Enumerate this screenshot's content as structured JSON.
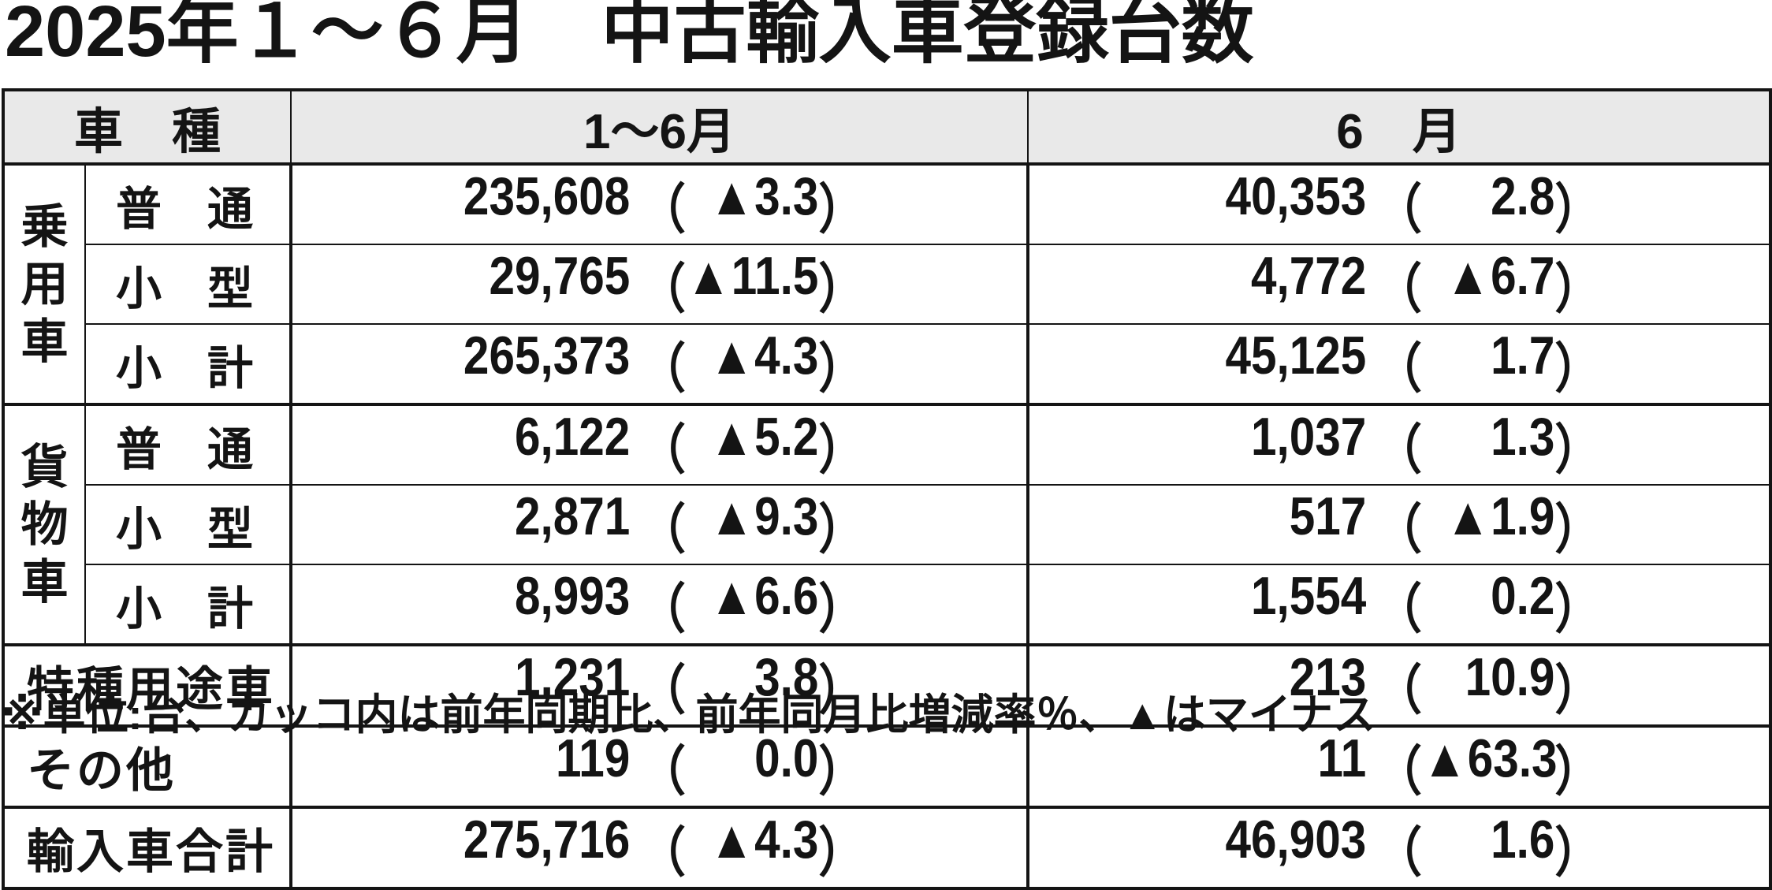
{
  "title": "2025年１～６月　中古輸入車登録台数",
  "footnote": "※単位:台、カッコ内は前年同期比、前年同月比増減率％、▲はマイナス",
  "format": {
    "open": "（",
    "close": "）"
  },
  "table": {
    "headers": {
      "vehicle_type": "車　種",
      "jan_jun": "1～6月",
      "june": "6　月"
    },
    "groups": [
      {
        "label": "乗用車",
        "chars": [
          "乗",
          "用",
          "車"
        ]
      },
      {
        "label": "貨物車",
        "chars": [
          "貨",
          "物",
          "車"
        ]
      }
    ],
    "rows": [
      {
        "group": "乗用車",
        "sub": "普通",
        "sub_chars": [
          "普",
          "通"
        ],
        "h1_value": "235,608",
        "h1_rate": "▲3.3",
        "jun_value": "40,353",
        "jun_rate": "2.8"
      },
      {
        "group": "乗用車",
        "sub": "小型",
        "sub_chars": [
          "小",
          "型"
        ],
        "h1_value": "29,765",
        "h1_rate": "▲11.5",
        "jun_value": "4,772",
        "jun_rate": "▲6.7"
      },
      {
        "group": "乗用車",
        "sub": "小計",
        "sub_chars": [
          "小",
          "計"
        ],
        "h1_value": "265,373",
        "h1_rate": "▲4.3",
        "jun_value": "45,125",
        "jun_rate": "1.7"
      },
      {
        "group": "貨物車",
        "sub": "普通",
        "sub_chars": [
          "普",
          "通"
        ],
        "h1_value": "6,122",
        "h1_rate": "▲5.2",
        "jun_value": "1,037",
        "jun_rate": "1.3"
      },
      {
        "group": "貨物車",
        "sub": "小型",
        "sub_chars": [
          "小",
          "型"
        ],
        "h1_value": "2,871",
        "h1_rate": "▲9.3",
        "jun_value": "517",
        "jun_rate": "▲1.9"
      },
      {
        "group": "貨物車",
        "sub": "小計",
        "sub_chars": [
          "小",
          "計"
        ],
        "h1_value": "8,993",
        "h1_rate": "▲6.6",
        "jun_value": "1,554",
        "jun_rate": "0.2"
      },
      {
        "label": "特種用途車",
        "h1_value": "1,231",
        "h1_rate": "3.8",
        "jun_value": "213",
        "jun_rate": "10.9"
      },
      {
        "label": "その他",
        "h1_value": "119",
        "h1_rate": "0.0",
        "jun_value": "11",
        "jun_rate": "▲63.3"
      },
      {
        "label": "輸入車合計",
        "h1_value": "275,716",
        "h1_rate": "▲4.3",
        "jun_value": "46,903",
        "jun_rate": "1.6"
      }
    ]
  }
}
